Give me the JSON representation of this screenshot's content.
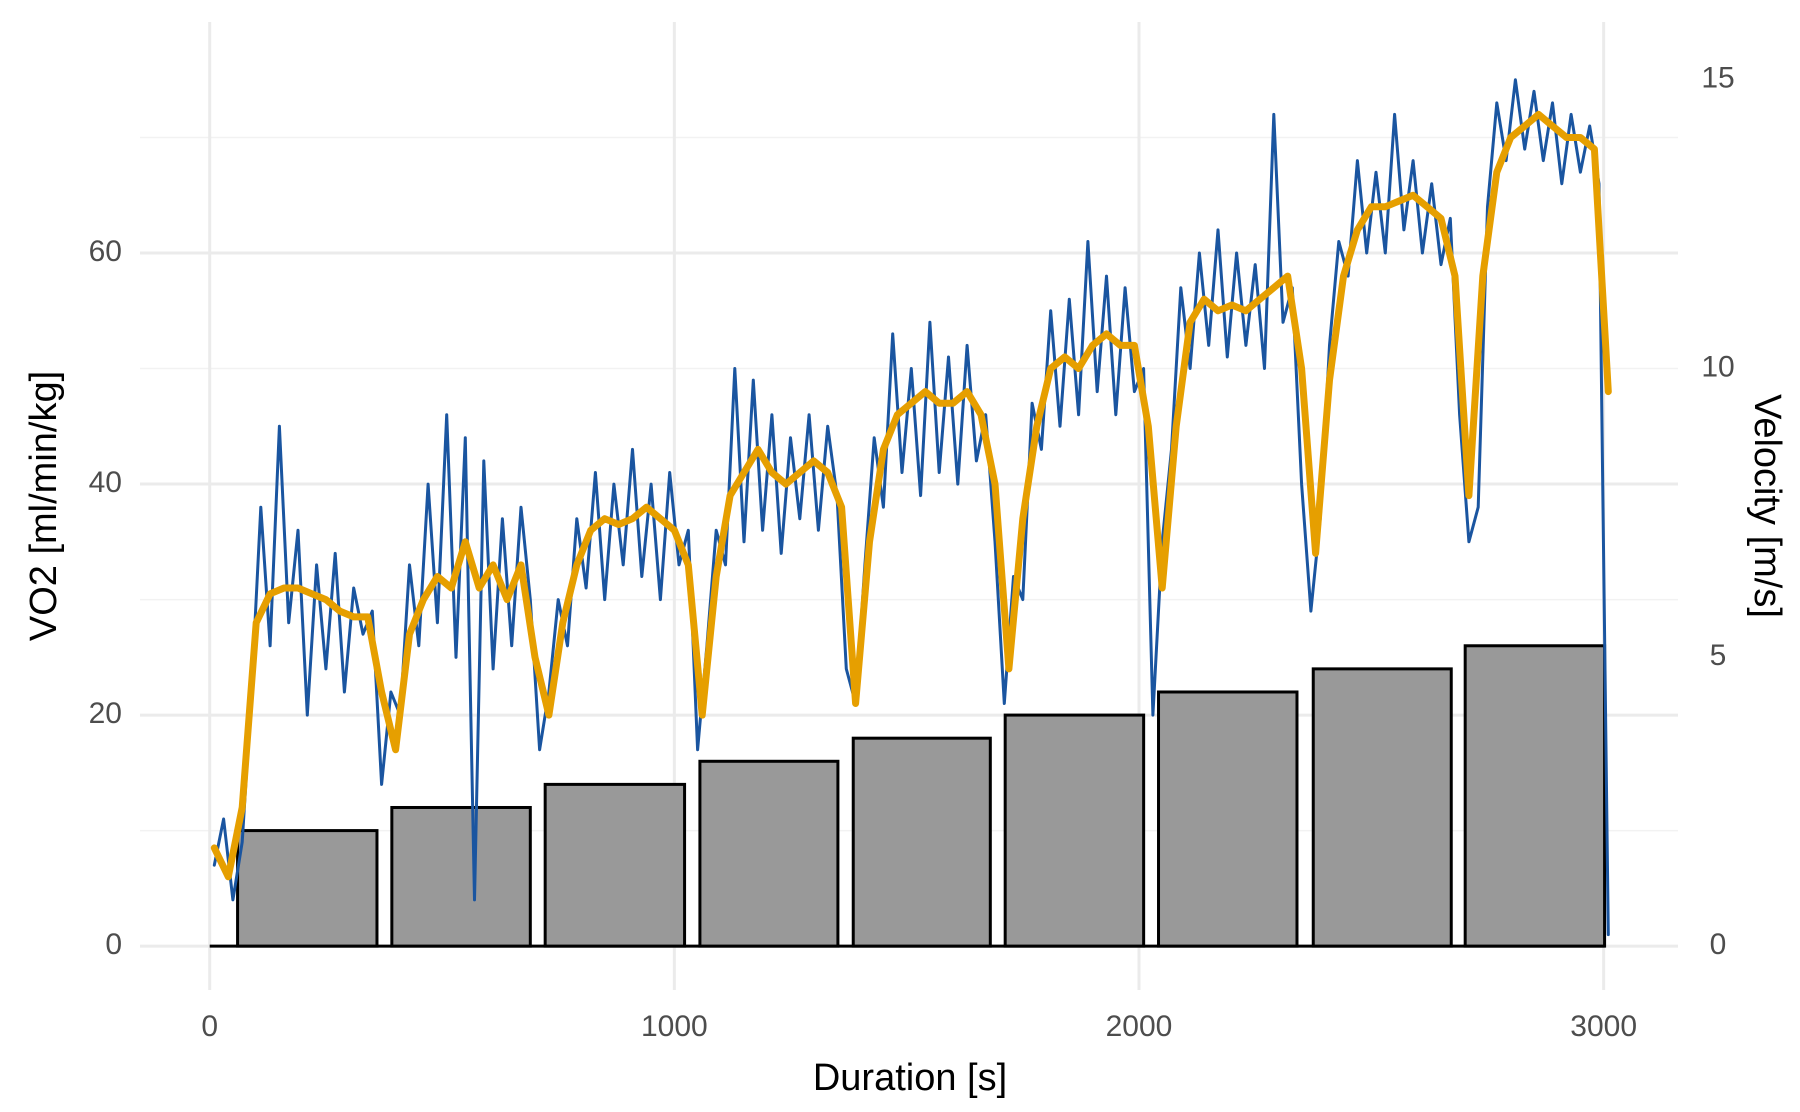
{
  "chart_data": {
    "type": "line",
    "x_label": "Duration [s]",
    "y_label": "VO2 [ml/min/kg]",
    "y2_label": "Velocity [m/s]",
    "xlim": [
      -150,
      3160
    ],
    "xticks": [
      0,
      1000,
      2000,
      3000
    ],
    "ylim": [
      -3.8,
      80
    ],
    "yticks": [
      0,
      20,
      40,
      60
    ],
    "y_minor_ticks": [
      10,
      30,
      50,
      70
    ],
    "y2lim": [
      -0.76,
      16
    ],
    "y2ticks": [
      0,
      5,
      10,
      15
    ],
    "grid": true,
    "bars": {
      "axis": "y2",
      "color": "#999999",
      "start": [
        60,
        392,
        722,
        1055,
        1385,
        1712,
        2042,
        2375,
        2702
      ],
      "end": [
        360,
        690,
        1022,
        1352,
        1680,
        2010,
        2340,
        2672,
        3002
      ],
      "values": [
        2,
        2.4,
        2.8,
        3.2,
        3.6,
        4,
        4.4,
        4.8,
        5.2
      ]
    },
    "series": [
      {
        "color": "#1a55a0",
        "x": [
          10,
          30,
          50,
          70,
          90,
          110,
          130,
          150,
          170,
          190,
          210,
          230,
          250,
          270,
          290,
          310,
          330,
          350,
          370,
          390,
          410,
          430,
          450,
          470,
          490,
          510,
          530,
          550,
          570,
          590,
          610,
          630,
          650,
          670,
          690,
          710,
          730,
          750,
          770,
          790,
          810,
          830,
          850,
          870,
          890,
          910,
          930,
          950,
          970,
          990,
          1010,
          1030,
          1050,
          1070,
          1090,
          1110,
          1130,
          1150,
          1170,
          1190,
          1210,
          1230,
          1250,
          1270,
          1290,
          1310,
          1330,
          1350,
          1370,
          1390,
          1410,
          1430,
          1450,
          1470,
          1490,
          1510,
          1530,
          1550,
          1570,
          1590,
          1610,
          1630,
          1650,
          1670,
          1690,
          1710,
          1730,
          1750,
          1770,
          1790,
          1810,
          1830,
          1850,
          1870,
          1890,
          1910,
          1930,
          1950,
          1970,
          1990,
          2010,
          2030,
          2050,
          2070,
          2090,
          2110,
          2130,
          2150,
          2170,
          2190,
          2210,
          2230,
          2250,
          2270,
          2290,
          2310,
          2330,
          2350,
          2370,
          2390,
          2410,
          2430,
          2450,
          2470,
          2490,
          2510,
          2530,
          2550,
          2570,
          2590,
          2610,
          2630,
          2650,
          2670,
          2690,
          2710,
          2730,
          2750,
          2770,
          2790,
          2810,
          2830,
          2850,
          2870,
          2890,
          2910,
          2930,
          2950,
          2970,
          2990,
          3010
        ],
        "values": [
          7,
          11,
          4,
          9,
          22,
          38,
          26,
          45,
          28,
          36,
          20,
          33,
          24,
          34,
          22,
          31,
          27,
          29,
          14,
          22,
          20,
          33,
          26,
          40,
          28,
          46,
          25,
          44,
          4,
          42,
          24,
          37,
          26,
          38,
          30,
          17,
          22,
          30,
          26,
          37,
          31,
          41,
          30,
          40,
          33,
          43,
          32,
          40,
          30,
          41,
          33,
          36,
          17,
          26,
          36,
          33,
          50,
          35,
          49,
          36,
          46,
          34,
          44,
          37,
          46,
          36,
          45,
          39,
          24,
          21,
          33,
          44,
          38,
          53,
          41,
          50,
          39,
          54,
          41,
          51,
          40,
          52,
          42,
          46,
          35,
          21,
          32,
          30,
          47,
          43,
          55,
          45,
          56,
          46,
          61,
          48,
          58,
          46,
          57,
          48,
          50,
          20,
          35,
          43,
          57,
          50,
          60,
          52,
          62,
          51,
          60,
          52,
          59,
          50,
          72,
          54,
          57,
          40,
          29,
          37,
          52,
          61,
          58,
          68,
          60,
          67,
          60,
          72,
          62,
          68,
          60,
          66,
          59,
          63,
          46,
          35,
          38,
          64,
          73,
          68,
          75,
          69,
          74,
          68,
          73,
          66,
          72,
          67,
          71,
          66,
          1
        ]
      },
      {
        "color": "#e69f00",
        "x": [
          10,
          40,
          70,
          100,
          130,
          160,
          190,
          220,
          250,
          280,
          310,
          340,
          370,
          400,
          430,
          460,
          490,
          520,
          550,
          580,
          610,
          640,
          670,
          700,
          730,
          760,
          790,
          820,
          850,
          880,
          910,
          940,
          970,
          1000,
          1030,
          1060,
          1090,
          1120,
          1150,
          1180,
          1210,
          1240,
          1270,
          1300,
          1330,
          1360,
          1390,
          1420,
          1450,
          1480,
          1510,
          1540,
          1570,
          1600,
          1630,
          1660,
          1690,
          1720,
          1750,
          1780,
          1810,
          1840,
          1870,
          1900,
          1930,
          1960,
          1990,
          2020,
          2050,
          2080,
          2110,
          2140,
          2170,
          2200,
          2230,
          2260,
          2290,
          2320,
          2350,
          2380,
          2410,
          2440,
          2470,
          2500,
          2530,
          2560,
          2590,
          2620,
          2650,
          2680,
          2710,
          2740,
          2770,
          2800,
          2830,
          2860,
          2890,
          2920,
          2950,
          2980,
          3010
        ],
        "values": [
          8.5,
          6,
          12,
          28,
          30.5,
          31,
          31,
          30.5,
          30,
          29,
          28.5,
          28.5,
          22,
          17,
          27,
          30,
          32,
          31,
          35,
          31,
          33,
          30,
          33,
          25,
          20,
          28,
          33,
          36,
          37,
          36.5,
          37,
          38,
          37,
          36,
          33,
          20,
          32,
          39,
          41,
          43,
          41,
          40,
          41,
          42,
          41,
          38,
          21,
          35,
          43,
          46,
          47,
          48,
          47,
          47,
          48,
          46,
          40,
          24,
          37,
          45,
          50,
          51,
          50,
          52,
          53,
          52,
          52,
          45,
          31,
          45,
          54,
          56,
          55,
          55.5,
          55,
          56,
          57,
          58,
          50,
          34,
          49,
          58,
          62,
          64,
          64,
          64.5,
          65,
          64,
          63,
          58,
          39,
          58,
          67,
          70,
          71,
          72,
          71,
          70,
          70,
          69,
          48
        ]
      }
    ]
  }
}
